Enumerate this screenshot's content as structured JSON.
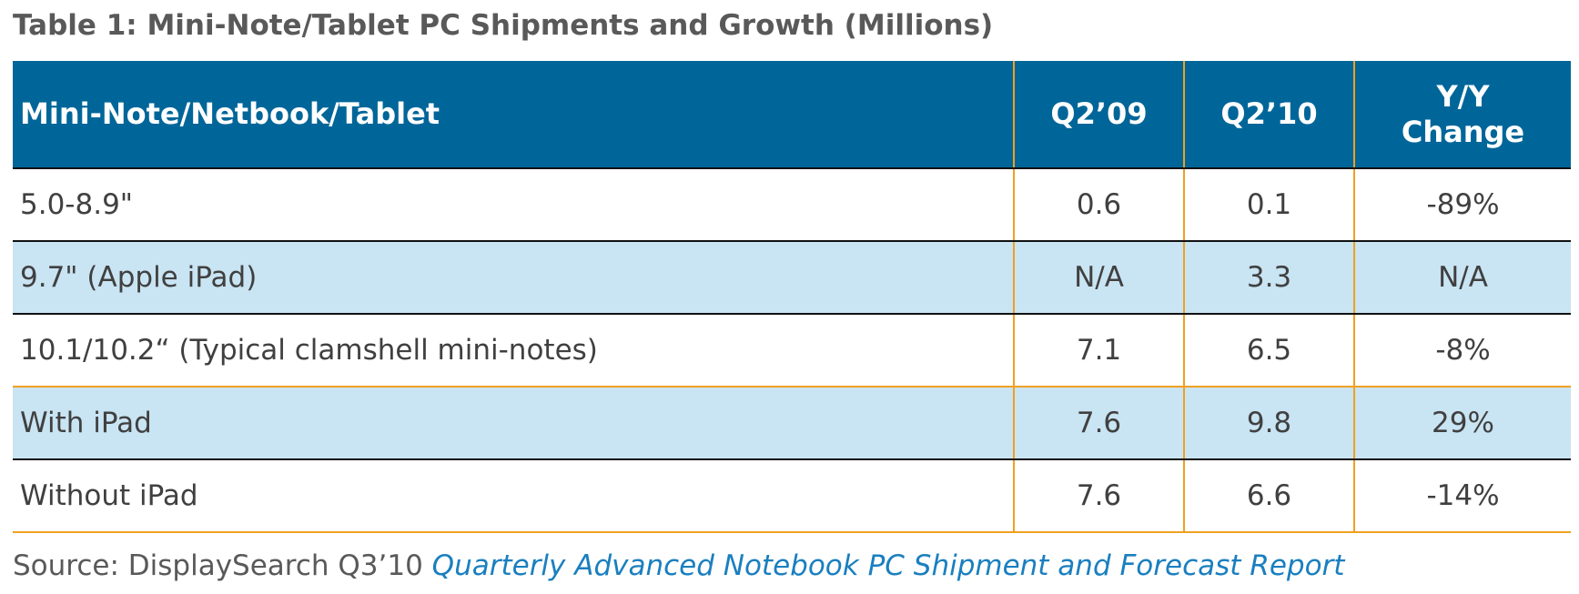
{
  "title": "Table 1: Mini-Note/Tablet PC Shipments and Growth (Millions)",
  "colors": {
    "header_bg": "#006699",
    "header_text": "#ffffff",
    "shaded_row": "#c9e4f3",
    "column_divider": "#f0a020",
    "row_divider": "#111111",
    "body_text": "#404040",
    "report_link": "#1a7fbf"
  },
  "chart_data": {
    "type": "table",
    "title": "Table 1: Mini-Note/Tablet PC Shipments and Growth (Millions)",
    "columns": [
      "Mini-Note/Netbook/Tablet",
      "Q2’09",
      "Q2’10",
      "Y/Y Change"
    ],
    "header_y_line1": "Y/Y",
    "header_y_line2": "Change",
    "rows": [
      [
        "5.0-8.9\"",
        "0.6",
        "0.1",
        "-89%"
      ],
      [
        "9.7\" (Apple iPad)",
        "N/A",
        "3.3",
        "N/A"
      ],
      [
        "10.1/10.2“ (Typical clamshell mini-notes)",
        "7.1",
        "6.5",
        "-8%"
      ],
      [
        "With iPad",
        "7.6",
        "9.8",
        "29%"
      ],
      [
        "Without iPad",
        "7.6",
        "6.6",
        "-14%"
      ]
    ]
  },
  "source": {
    "prefix": "Source: DisplaySearch Q3’10 ",
    "report": "Quarterly Advanced Notebook PC Shipment and Forecast Report"
  }
}
